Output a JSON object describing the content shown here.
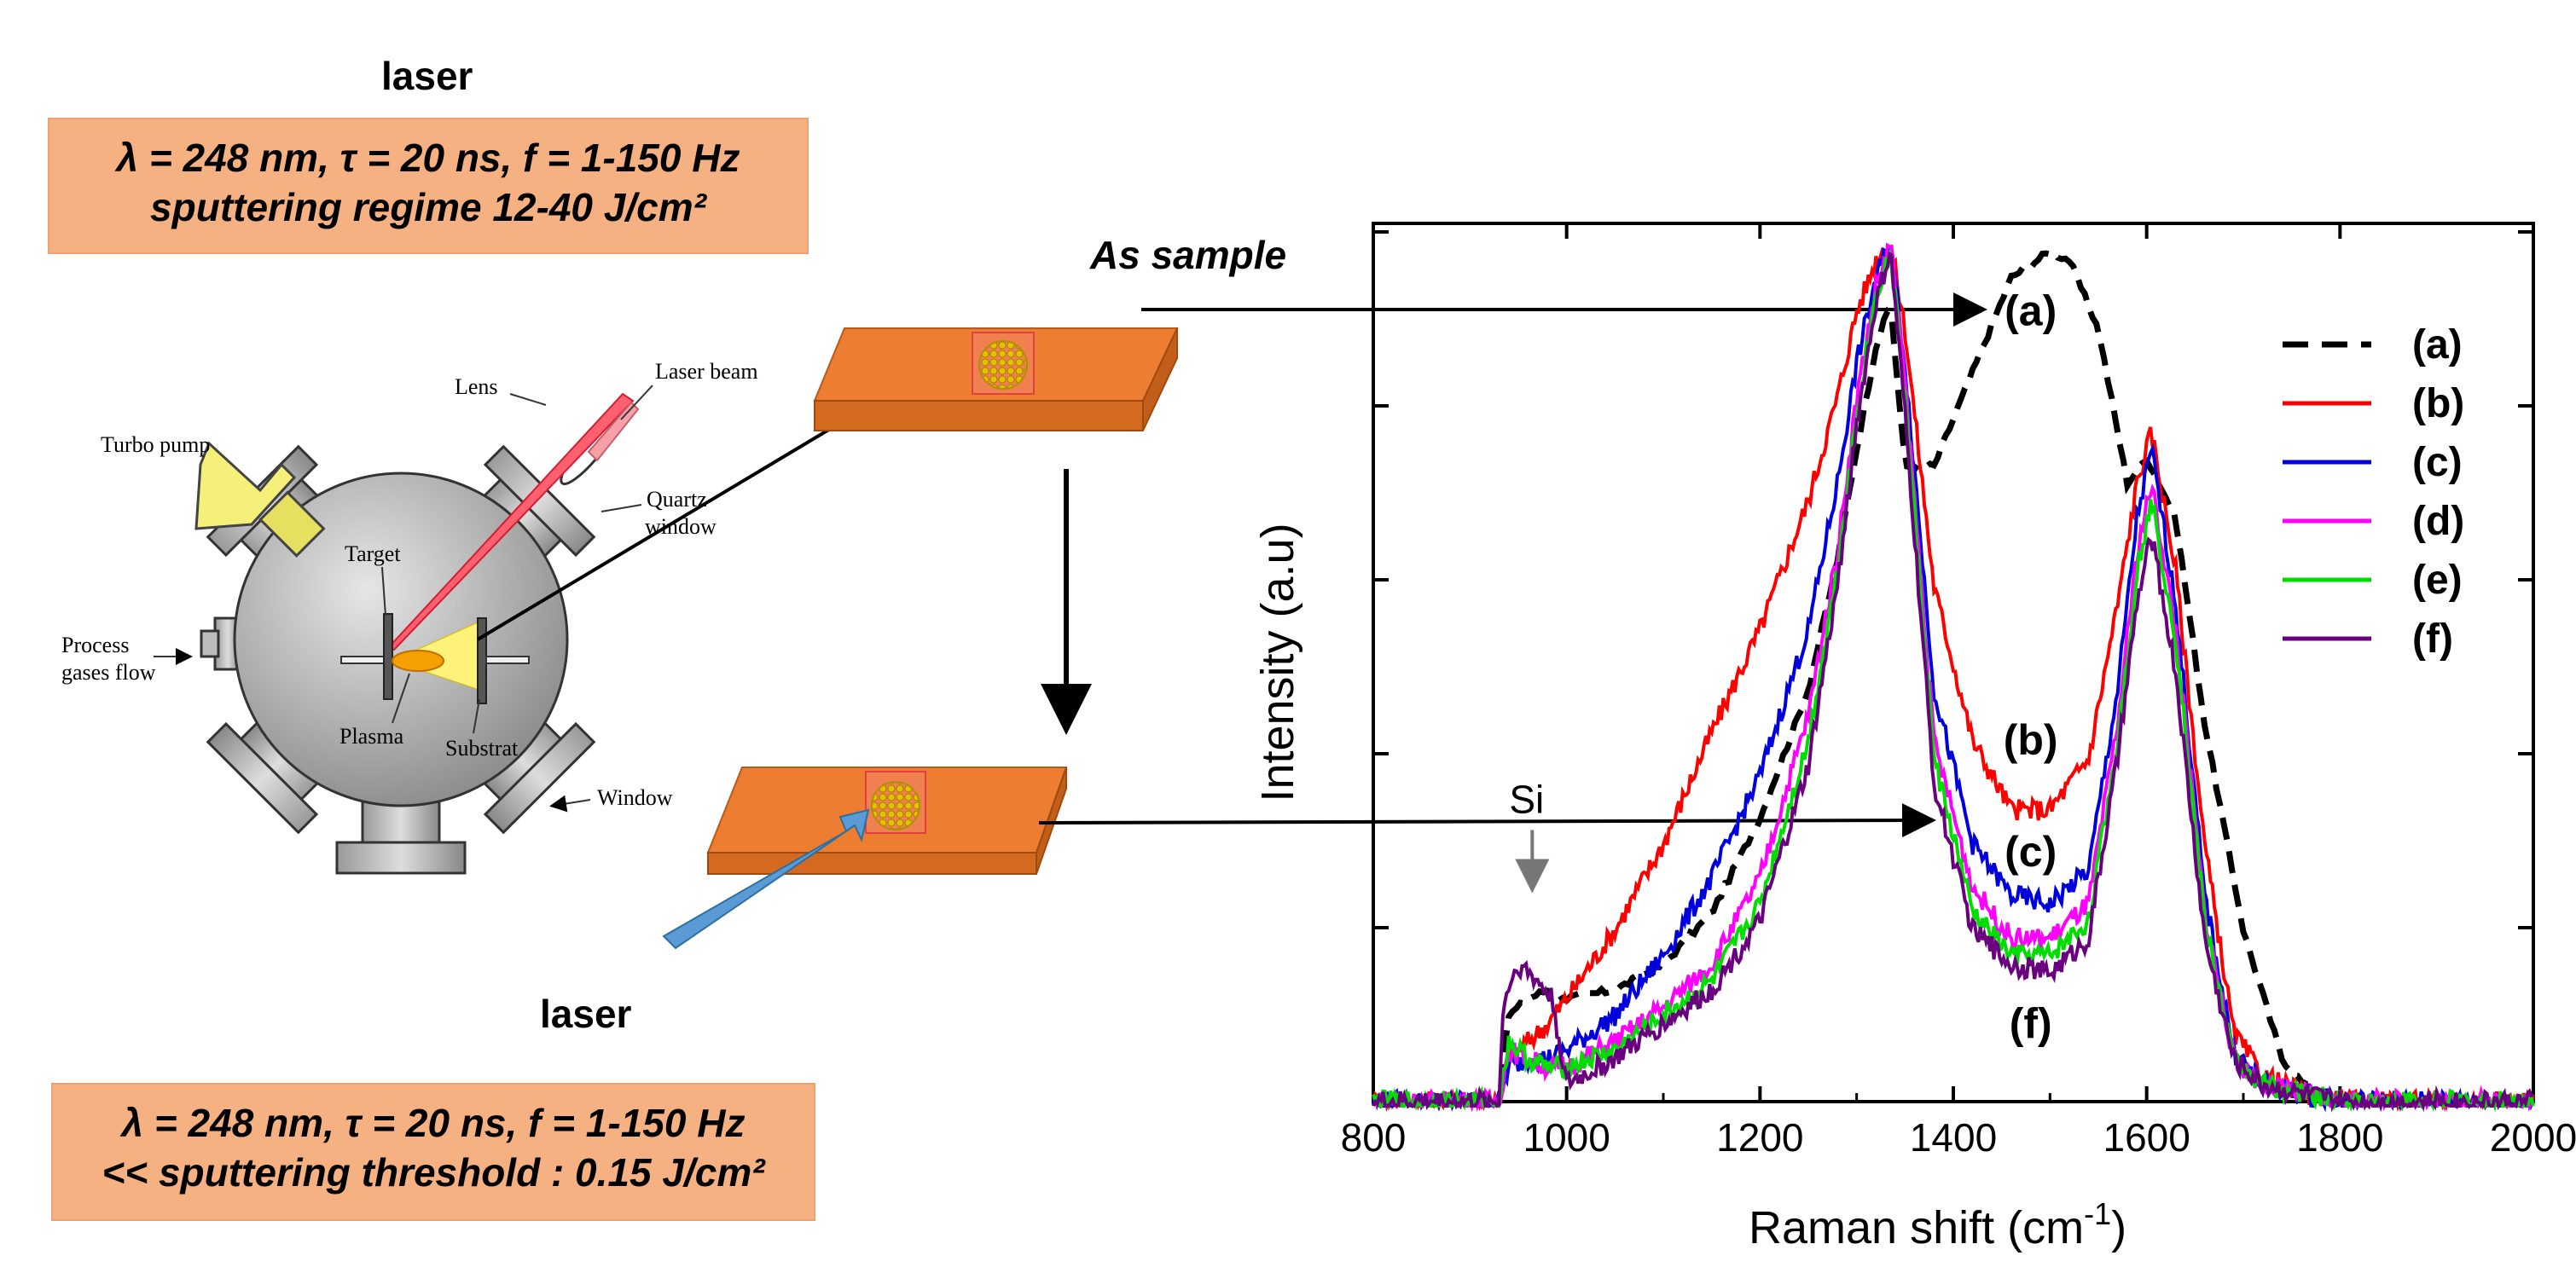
{
  "top_laser": {
    "title": "laser",
    "line1": "λ = 248 nm,  τ = 20 ns,  f = 1-150 Hz",
    "line2": "sputtering regime 12-40 J/cm²"
  },
  "bottom_laser": {
    "title": "laser",
    "line1": "λ = 248 nm,  τ = 20 ns,  f = 1-150 Hz",
    "line2": "<< sputtering threshold : 0.15 J/cm²"
  },
  "as_sample_label": "As sample",
  "chamber": {
    "turbo_pump": "Turbo pump",
    "lens": "Lens",
    "laser_beam": "Laser beam",
    "quartz_window_1": "Quartz",
    "quartz_window_2": "window",
    "target": "Target",
    "process_gases_1": "Process",
    "process_gases_2": "gases flow",
    "plasma": "Plasma",
    "substrat": "Substrat",
    "window": "Window"
  },
  "colors": {
    "box_fill": "#f6b183",
    "plate": "#ed7d31",
    "a": "#000000",
    "b": "#ff0000",
    "c": "#0000dd",
    "d": "#ff00ff",
    "e": "#00dd00",
    "f": "#6a0080"
  },
  "chart_data": {
    "type": "line",
    "title": "",
    "xlabel": "Raman shift (cm-1)",
    "xlabel_main": "Raman shift (cm",
    "xlabel_sup": "-1",
    "xlabel_close": ")",
    "ylabel": "Intensity (a.u)",
    "xlim": [
      800,
      2000
    ],
    "ylim": [
      0,
      1
    ],
    "xticks": [
      800,
      1000,
      1200,
      1400,
      1600,
      1800,
      2000
    ],
    "xtick_labels": [
      "800",
      "1000",
      "1200",
      "1400",
      "1600",
      "1800",
      "2000"
    ],
    "legend_position": "top-right",
    "series": [
      {
        "name": "(a)",
        "style": "dashed",
        "x": [
          800,
          930,
          940,
          960,
          980,
          1000,
          1050,
          1100,
          1150,
          1200,
          1250,
          1280,
          1300,
          1320,
          1335,
          1350,
          1380,
          1420,
          1460,
          1500,
          1520,
          1550,
          1580,
          1600,
          1630,
          1660,
          1700,
          1740,
          1770,
          1800,
          2000
        ],
        "y": [
          0,
          0,
          0.1,
          0.12,
          0.13,
          0.12,
          0.13,
          0.16,
          0.22,
          0.33,
          0.48,
          0.63,
          0.76,
          0.88,
          0.93,
          0.74,
          0.74,
          0.85,
          0.96,
          0.99,
          0.98,
          0.9,
          0.72,
          0.75,
          0.68,
          0.44,
          0.2,
          0.05,
          0.01,
          0,
          0
        ]
      },
      {
        "name": "(b)",
        "style": "solid",
        "x": [
          800,
          930,
          940,
          960,
          980,
          1000,
          1050,
          1100,
          1150,
          1200,
          1250,
          1280,
          1300,
          1320,
          1335,
          1350,
          1380,
          1420,
          1460,
          1500,
          1540,
          1570,
          1590,
          1605,
          1630,
          1660,
          1690,
          1720,
          1760,
          1800,
          2000
        ],
        "y": [
          0,
          0,
          0.05,
          0.07,
          0.09,
          0.12,
          0.2,
          0.3,
          0.43,
          0.55,
          0.7,
          0.82,
          0.92,
          0.98,
          1.0,
          0.9,
          0.6,
          0.42,
          0.34,
          0.34,
          0.4,
          0.58,
          0.72,
          0.78,
          0.62,
          0.3,
          0.08,
          0.03,
          0.01,
          0,
          0
        ]
      },
      {
        "name": "(c)",
        "style": "solid",
        "x": [
          800,
          930,
          940,
          960,
          980,
          1000,
          1050,
          1100,
          1150,
          1200,
          1250,
          1280,
          1300,
          1320,
          1335,
          1350,
          1380,
          1420,
          1460,
          1500,
          1540,
          1570,
          1590,
          1605,
          1630,
          1660,
          1690,
          1720,
          1760,
          1800,
          2000
        ],
        "y": [
          0,
          0,
          0.04,
          0.05,
          0.05,
          0.06,
          0.1,
          0.17,
          0.26,
          0.38,
          0.55,
          0.72,
          0.86,
          0.96,
          1.0,
          0.86,
          0.48,
          0.3,
          0.24,
          0.23,
          0.27,
          0.48,
          0.68,
          0.76,
          0.58,
          0.24,
          0.06,
          0.02,
          0.01,
          0,
          0
        ]
      },
      {
        "name": "(d)",
        "style": "solid",
        "x": [
          800,
          930,
          940,
          960,
          980,
          1000,
          1050,
          1100,
          1150,
          1200,
          1250,
          1280,
          1300,
          1320,
          1335,
          1350,
          1380,
          1420,
          1460,
          1500,
          1540,
          1570,
          1590,
          1605,
          1630,
          1660,
          1690,
          1720,
          1760,
          1800,
          2000
        ],
        "y": [
          0,
          0,
          0.06,
          0.05,
          0.04,
          0.04,
          0.07,
          0.11,
          0.16,
          0.26,
          0.45,
          0.64,
          0.82,
          0.95,
          1.0,
          0.84,
          0.42,
          0.25,
          0.19,
          0.19,
          0.23,
          0.44,
          0.64,
          0.72,
          0.55,
          0.22,
          0.05,
          0.02,
          0.01,
          0,
          0
        ]
      },
      {
        "name": "(e)",
        "style": "solid",
        "x": [
          800,
          930,
          940,
          960,
          980,
          1000,
          1050,
          1100,
          1150,
          1200,
          1250,
          1280,
          1300,
          1320,
          1335,
          1350,
          1380,
          1420,
          1460,
          1500,
          1540,
          1570,
          1590,
          1605,
          1630,
          1660,
          1690,
          1720,
          1760,
          1800,
          2000
        ],
        "y": [
          0,
          0,
          0.07,
          0.05,
          0.04,
          0.04,
          0.06,
          0.1,
          0.14,
          0.23,
          0.42,
          0.62,
          0.8,
          0.94,
          0.99,
          0.82,
          0.4,
          0.22,
          0.17,
          0.17,
          0.21,
          0.42,
          0.62,
          0.7,
          0.54,
          0.21,
          0.05,
          0.02,
          0.01,
          0,
          0
        ]
      },
      {
        "name": "(f)",
        "style": "solid",
        "x": [
          800,
          930,
          935,
          950,
          970,
          985,
          1000,
          1050,
          1100,
          1150,
          1200,
          1250,
          1280,
          1300,
          1320,
          1335,
          1350,
          1380,
          1420,
          1460,
          1500,
          1540,
          1570,
          1590,
          1605,
          1630,
          1660,
          1690,
          1720,
          1760,
          1800,
          2000
        ],
        "y": [
          0,
          0,
          0.12,
          0.16,
          0.14,
          0.12,
          0.02,
          0.05,
          0.09,
          0.13,
          0.21,
          0.39,
          0.6,
          0.79,
          0.93,
          0.99,
          0.8,
          0.37,
          0.2,
          0.16,
          0.15,
          0.19,
          0.4,
          0.58,
          0.66,
          0.5,
          0.19,
          0.05,
          0.02,
          0.01,
          0,
          0
        ]
      }
    ],
    "annotations": [
      {
        "text": "(a)",
        "x": 1480,
        "y": 0.92
      },
      {
        "text": "(b)",
        "x": 1480,
        "y": 0.42
      },
      {
        "text": "(c)",
        "x": 1480,
        "y": 0.29
      },
      {
        "text": "(f)",
        "x": 1480,
        "y": 0.09
      },
      {
        "text": "Si",
        "x": 960,
        "y": 0.35
      }
    ]
  }
}
